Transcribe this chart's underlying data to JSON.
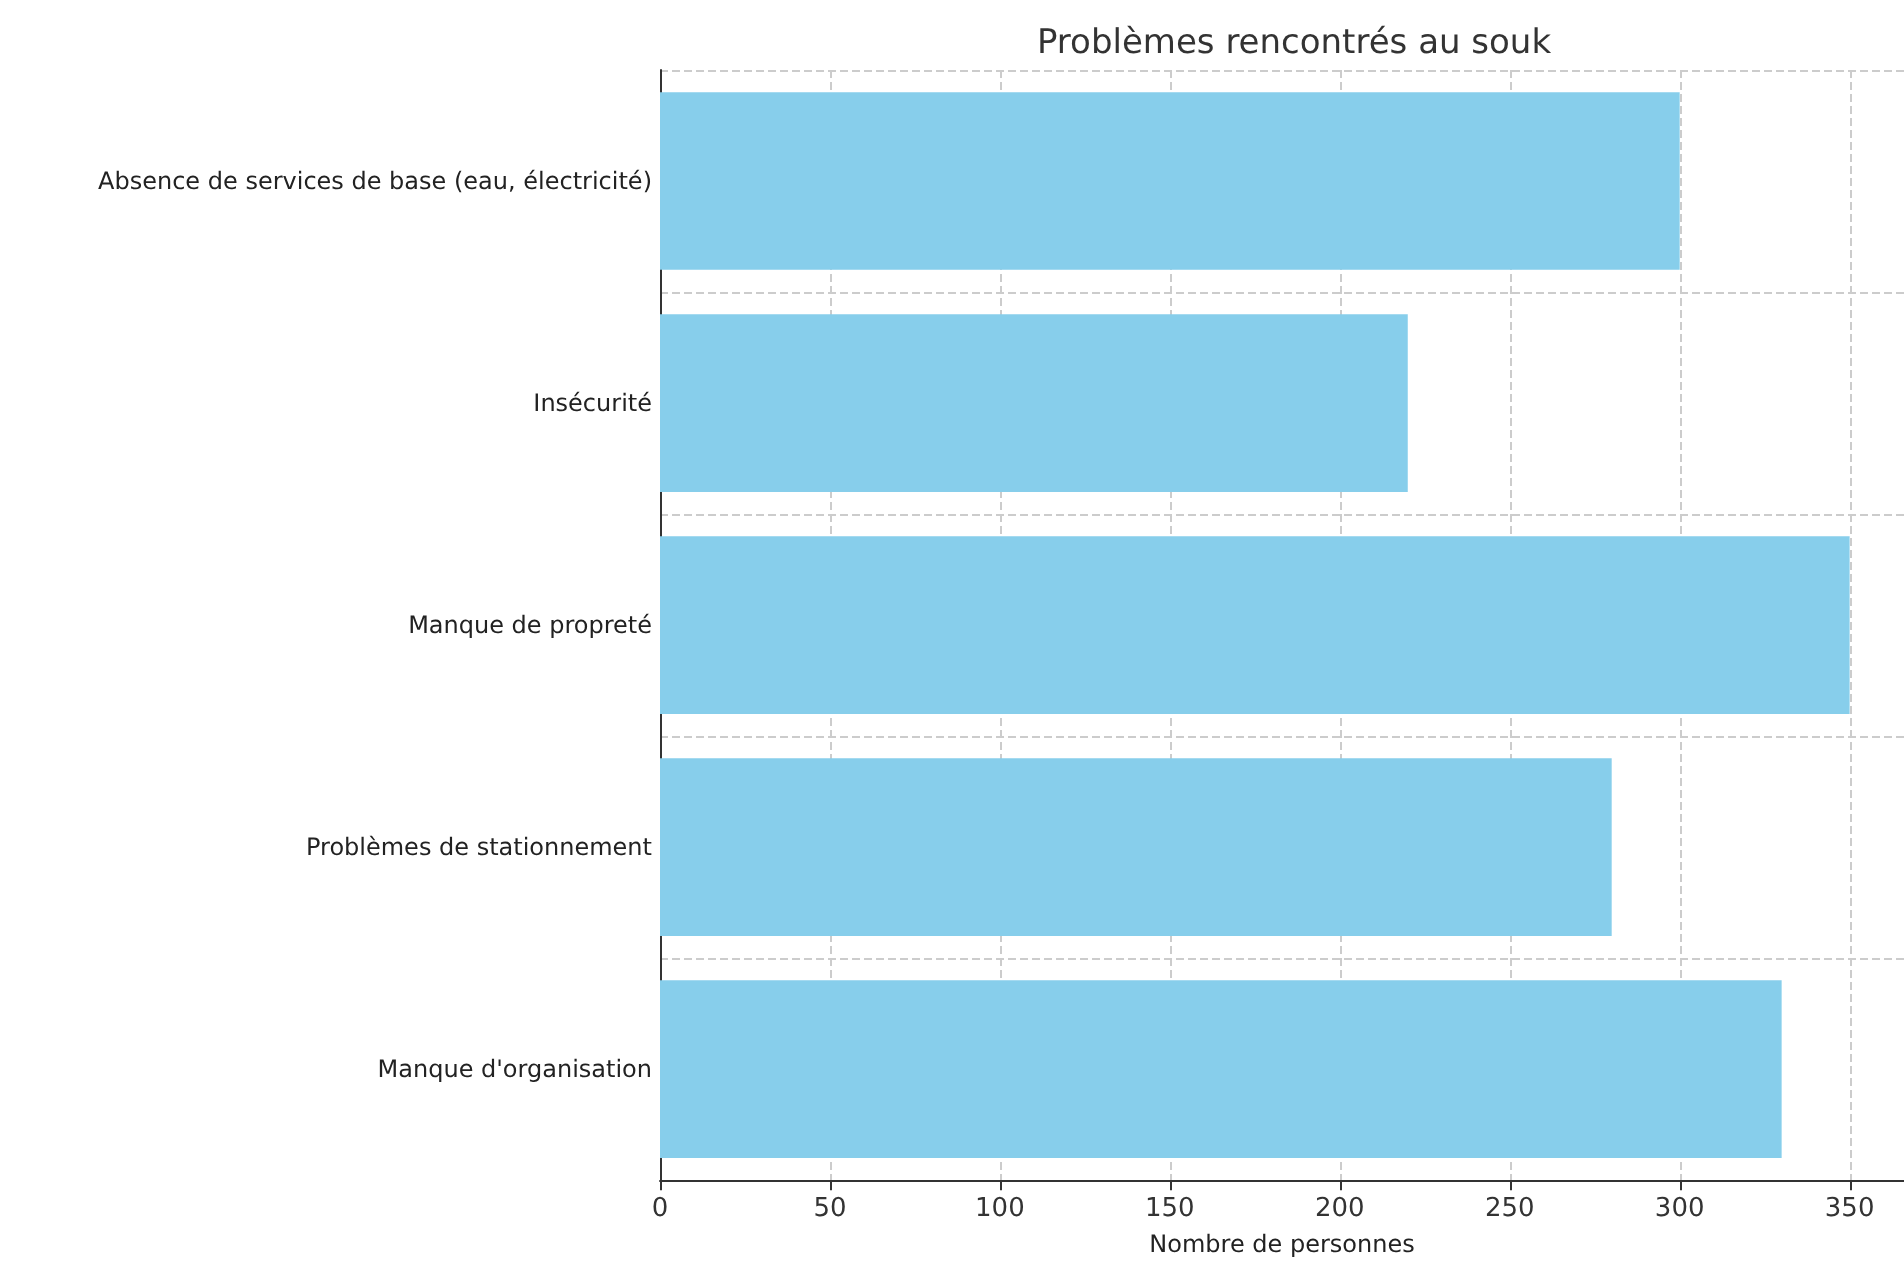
{
  "chart_data": {
    "type": "bar",
    "orientation": "horizontal",
    "title": "Problèmes rencontrés au souk",
    "xlabel": "Nombre de personnes",
    "categories": [
      "Absence de services de base (eau, électricité)",
      "Insécurité",
      "Manque de propreté",
      "Problèmes de stationnement",
      "Manque d'organisation"
    ],
    "values": [
      300,
      220,
      350,
      280,
      330
    ],
    "color": "#87ceeb",
    "xlim": [
      0,
      366
    ],
    "xticks": [
      0,
      50,
      100,
      150,
      200,
      250,
      300,
      350
    ],
    "grid": true
  }
}
